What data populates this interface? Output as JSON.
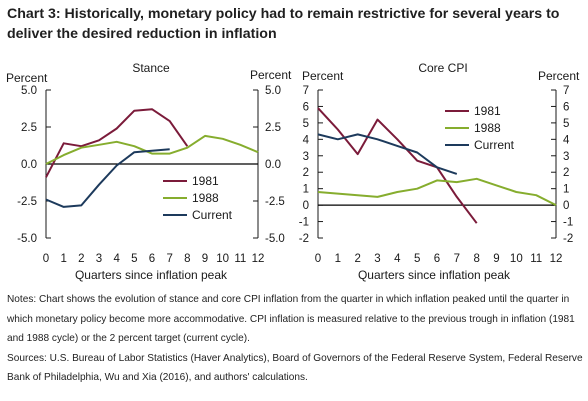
{
  "title": "Chart 3: Historically, monetary policy had to remain restrictive for several years to deliver the desired reduction in inflation",
  "colors": {
    "1981": "#7b1b3a",
    "1988": "#86ad2e",
    "Current": "#1d3a5c",
    "zero": "#000000",
    "axis": "#1a1a1a"
  },
  "chart_data": [
    {
      "type": "line",
      "title": "Stance",
      "ylabel_left": "Percent",
      "ylabel_right": "Percent",
      "xlabel": "Quarters since inflation peak",
      "xlim": [
        0,
        12
      ],
      "ylim": [
        -5,
        5
      ],
      "xticks": [
        0,
        1,
        2,
        3,
        4,
        5,
        6,
        7,
        8,
        9,
        10,
        11,
        12
      ],
      "yticks": [
        "5.0",
        "2.5",
        "0.0",
        "-2.5",
        "-5.0"
      ],
      "ytick_values": [
        5,
        2.5,
        0,
        -2.5,
        -5
      ],
      "legend_position": "lower-center",
      "series": [
        {
          "name": "1981",
          "x": [
            0,
            1,
            2,
            3,
            4,
            5,
            6,
            7,
            8
          ],
          "values": [
            -0.9,
            1.4,
            1.2,
            1.6,
            2.4,
            3.6,
            3.7,
            2.9,
            1.2
          ]
        },
        {
          "name": "1988",
          "x": [
            0,
            1,
            2,
            3,
            4,
            5,
            6,
            7,
            8,
            9,
            10,
            11,
            12
          ],
          "values": [
            0.0,
            0.6,
            1.1,
            1.3,
            1.5,
            1.2,
            0.7,
            0.7,
            1.1,
            1.9,
            1.7,
            1.3,
            0.8
          ]
        },
        {
          "name": "Current",
          "x": [
            0,
            1,
            2,
            3,
            4,
            5,
            6,
            7
          ],
          "values": [
            -2.4,
            -2.9,
            -2.8,
            -1.4,
            -0.1,
            0.8,
            0.9,
            1.0
          ]
        }
      ]
    },
    {
      "type": "line",
      "title": "Core CPI",
      "ylabel_left": "Percent",
      "ylabel_right": "Percent",
      "xlabel": "Quarters since inflation peak",
      "xlim": [
        0,
        12
      ],
      "ylim": [
        -2,
        7
      ],
      "xticks": [
        0,
        1,
        2,
        3,
        4,
        5,
        6,
        7,
        8,
        9,
        10,
        11,
        12
      ],
      "yticks": [
        "7",
        "6",
        "5",
        "4",
        "3",
        "2",
        "1",
        "0",
        "-1",
        "-2"
      ],
      "ytick_values": [
        7,
        6,
        5,
        4,
        3,
        2,
        1,
        0,
        -1,
        -2
      ],
      "legend_position": "top-right",
      "series": [
        {
          "name": "1981",
          "x": [
            0,
            1,
            2,
            3,
            4,
            5,
            6,
            7,
            8
          ],
          "values": [
            5.9,
            4.6,
            3.1,
            5.2,
            4.0,
            2.7,
            2.3,
            0.5,
            -1.1
          ]
        },
        {
          "name": "1988",
          "x": [
            0,
            1,
            2,
            3,
            4,
            5,
            6,
            7,
            8,
            9,
            10,
            11,
            12
          ],
          "values": [
            0.8,
            0.7,
            0.6,
            0.5,
            0.8,
            1.0,
            1.5,
            1.4,
            1.6,
            1.2,
            0.8,
            0.6,
            0.0
          ]
        },
        {
          "name": "Current",
          "x": [
            0,
            1,
            2,
            3,
            4,
            5,
            6,
            7
          ],
          "values": [
            4.3,
            4.0,
            4.3,
            4.0,
            3.6,
            3.2,
            2.3,
            1.9
          ]
        }
      ]
    }
  ],
  "notes": [
    "Notes: Chart shows the evolution of stance and core CPI inflation from the quarter in which inflation peaked until the quarter in which monetary policy become more accommodative. CPI inflation is measured relative to the previous trough in inflation (1981 and 1988 cycle) or the 2 percent target (current cycle).",
    "Sources: U.S. Bureau of Labor Statistics (Haver Analytics), Board of Governors of the Federal Reserve System, Federal Reserve Bank of Philadelphia, Wu and Xia (2016), and authors' calculations."
  ]
}
